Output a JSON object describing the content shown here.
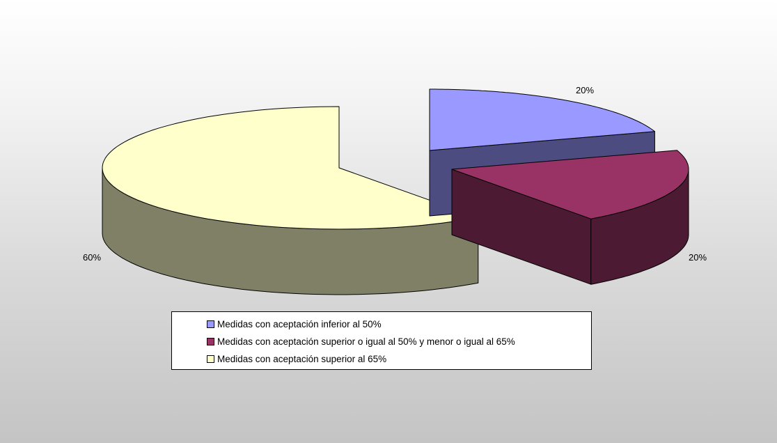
{
  "chart_data": {
    "type": "pie",
    "three_d": true,
    "exploded": true,
    "legend_position": "bottom",
    "series": [
      {
        "name": "Medidas con aceptación inferior al 50%",
        "value": 20,
        "label": "20%",
        "color_top": "#9999ff",
        "color_side": "#4c4c80"
      },
      {
        "name": "Medidas con aceptación superior o igual al 50% y menor o igual al 65%",
        "value": 20,
        "label": "20%",
        "color_top": "#993366",
        "color_side": "#4c1a33"
      },
      {
        "name": "Medidas con aceptación superior al 65%",
        "value": 60,
        "label": "60%",
        "color_top": "#ffffcc",
        "color_side": "#808066"
      }
    ]
  }
}
